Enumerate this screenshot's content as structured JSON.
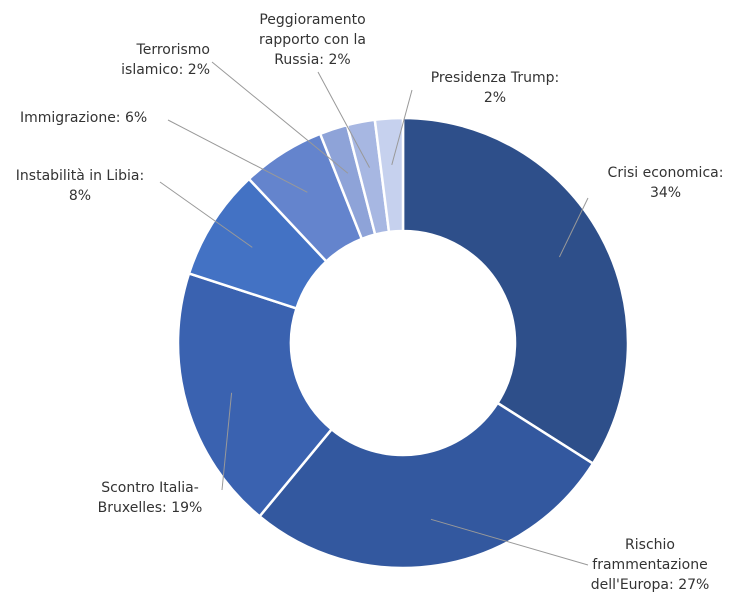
{
  "chart_data": {
    "type": "donut",
    "categories": [
      "Crisi economica:",
      "Rischio frammentazione dell'Europa:",
      "Scontro Italia-Bruxelles:",
      "Instabilità in Libia:",
      "Immigrazione:",
      "Terrorismo islamico:",
      "Peggioramento rapporto con la Russia:",
      "Presidenza Trump:"
    ],
    "values": [
      34,
      27,
      19,
      8,
      6,
      2,
      2,
      2
    ],
    "value_labels": [
      "34%",
      "27%",
      "19%",
      "8%",
      "6%",
      "2%",
      "2%",
      "2%"
    ],
    "colors": [
      "#2e4f8a",
      "#33589f",
      "#3a62b0",
      "#4372c4",
      "#6484cd",
      "#8ea3d8",
      "#a7b7e2",
      "#c6d1ee"
    ]
  }
}
